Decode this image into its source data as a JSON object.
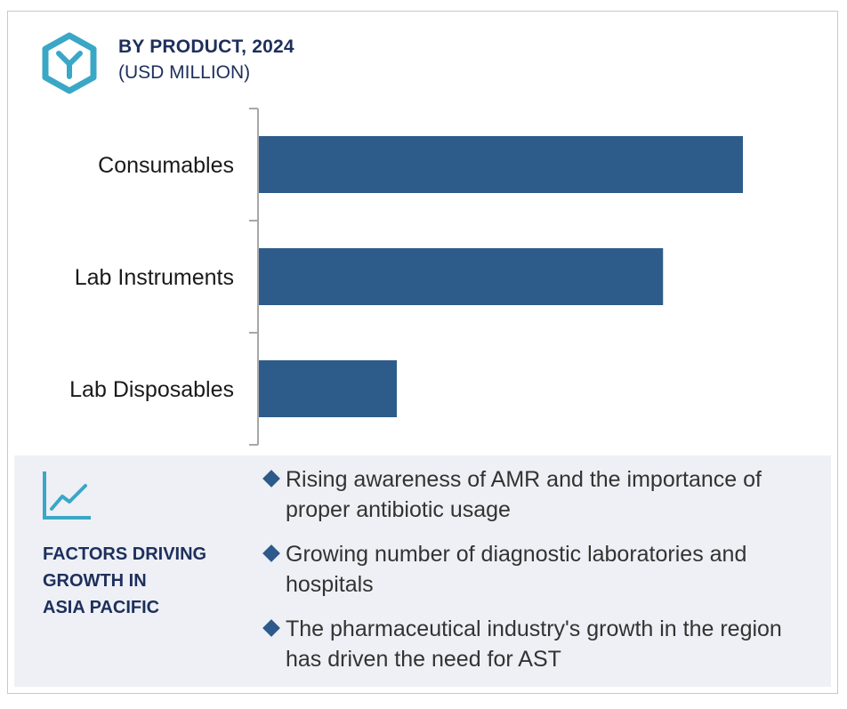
{
  "header": {
    "title": "BY PRODUCT, 2024",
    "subtitle": "(USD MILLION)",
    "icon": "hexagon-y-icon"
  },
  "colors": {
    "bar": "#2e5c8a",
    "accent": "#3aa7c7",
    "navy": "#1d2f5c",
    "factors_bg": "#eef0f5"
  },
  "chart_data": {
    "type": "bar",
    "orientation": "horizontal",
    "categories": [
      "Consumables",
      "Lab Instruments",
      "Lab Disposables"
    ],
    "values": [
      100,
      83.5,
      28.5
    ],
    "value_scale": "relative (no axis values printed)",
    "xlim": [
      0,
      100
    ],
    "grid": false,
    "legend": "none"
  },
  "factors": {
    "icon": "line-chart-icon",
    "label_lines": [
      "FACTORS DRIVING",
      "GROWTH IN",
      "ASIA PACIFIC"
    ],
    "items": [
      "Rising awareness of AMR and the importance of proper antibiotic usage",
      "Growing number of diagnostic laboratories and hospitals",
      "The pharmaceutical industry's growth in the region has driven the need for AST"
    ]
  }
}
